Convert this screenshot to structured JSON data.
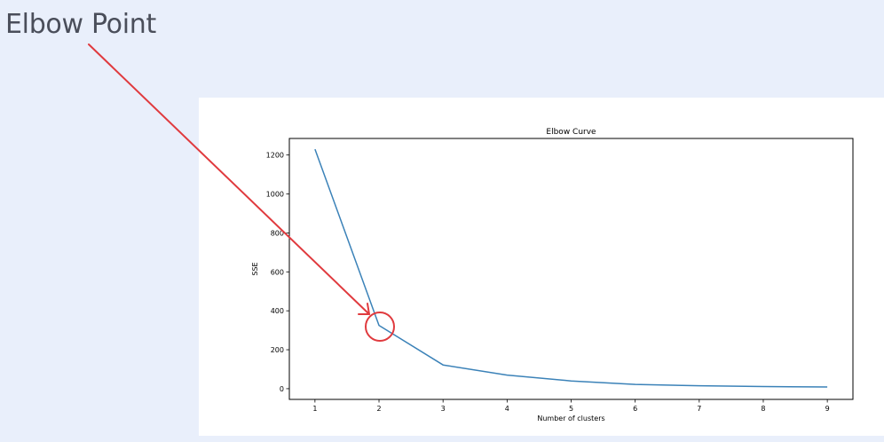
{
  "slide": {
    "title": "Elbow Point"
  },
  "colors": {
    "background": "#e9effb",
    "panel": "#ffffff",
    "line": "#3b82b8",
    "annotation": "#e03a3e",
    "title_text": "#4a4e5a"
  },
  "chart_data": {
    "type": "line",
    "title": "Elbow Curve",
    "xlabel": "Number of clusters",
    "ylabel": "SSE",
    "x": [
      1,
      2,
      3,
      4,
      5,
      6,
      7,
      8,
      9
    ],
    "series": [
      {
        "values": [
          1230,
          325,
          122,
          70,
          40,
          22,
          15,
          11,
          9
        ]
      }
    ],
    "xlim": [
      0.6,
      9.4
    ],
    "ylim": [
      -55,
      1285
    ],
    "xticks": [
      1,
      2,
      3,
      4,
      5,
      6,
      7,
      8,
      9
    ],
    "yticks": [
      0,
      200,
      400,
      600,
      800,
      1000,
      1200
    ],
    "grid": false,
    "annotation": {
      "label": "Elbow Point",
      "target": {
        "x": 2,
        "y": 325
      },
      "style": "red arrow pointing to a red circle around the elbow"
    }
  }
}
